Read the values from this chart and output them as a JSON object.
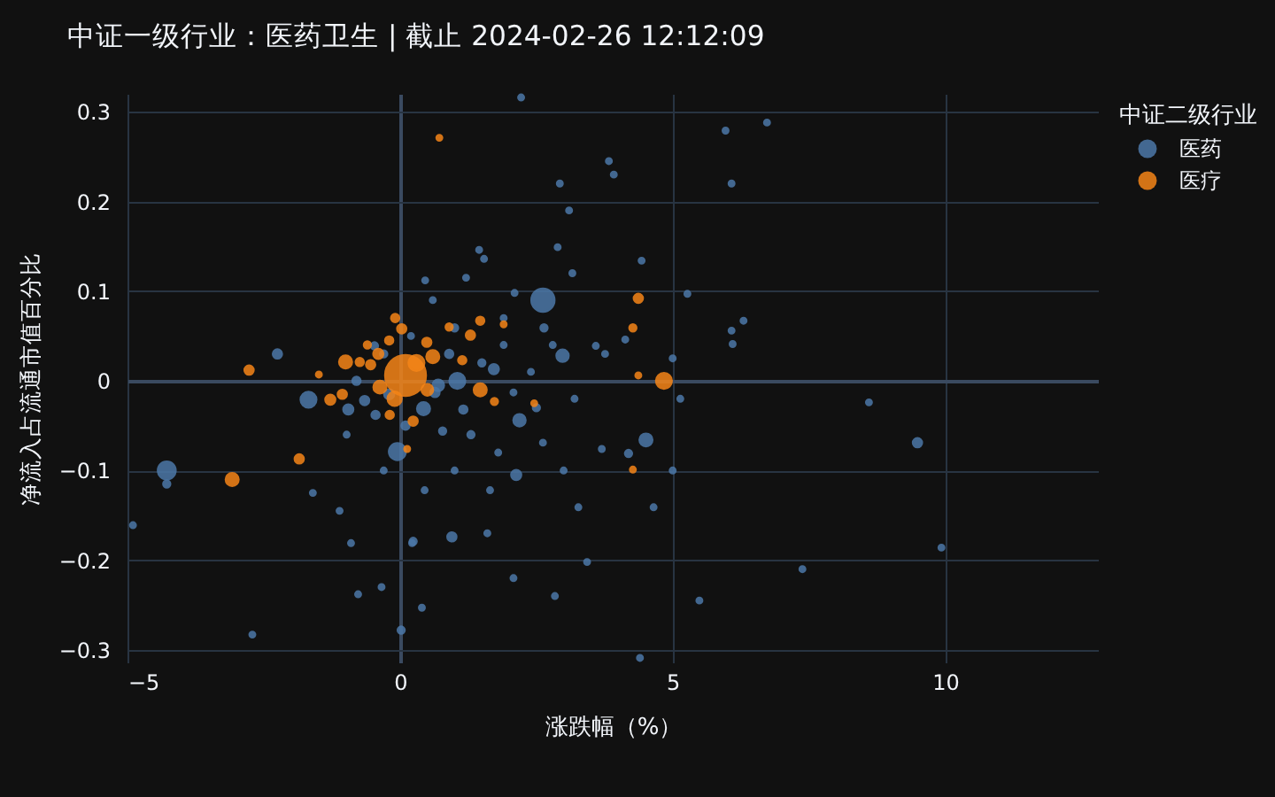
{
  "chart_data": {
    "type": "bubble",
    "title": "中证一级行业：医药卫生 | 截止 2024-02-26 12:12:09",
    "xlabel": "涨跌幅（%）",
    "ylabel": "净流入占流通市值百分比",
    "legend_title": "中证二级行业",
    "legend": "top right",
    "grid": true,
    "xlim": [
      -5,
      12.8
    ],
    "ylim": [
      -0.314,
      0.32
    ],
    "xticks": [
      -5,
      0,
      5,
      10
    ],
    "yticks": [
      -0.3,
      -0.2,
      -0.1,
      0,
      0.1,
      0.2,
      0.3
    ],
    "series": [
      {
        "name": "医药",
        "color": "#4c78a8",
        "x": [
          -4.28,
          -4.28,
          -2.25,
          -1.68,
          -0.05,
          -4.9,
          0.02,
          -0.34,
          -0.77,
          0.22,
          -1.6,
          -1.11,
          -0.9,
          -2.71,
          -0.47,
          -0.95,
          -0.98,
          2.62,
          2.98,
          2.64,
          1.05,
          0.43,
          2.13,
          2.19,
          1.72,
          0.95,
          0.24,
          1.0,
          2.1,
          1.45,
          1.54,
          2.93,
          3.83,
          3.92,
          3.16,
          2.89,
          0.46,
          1.21,
          2.22,
          0.64,
          -0.45,
          -0.65,
          0.78,
          1.16,
          2.08,
          0.45,
          1.65,
          2.08,
          2.84,
          0.4,
          3.43,
          3.27,
          3.7,
          3.59,
          4.13,
          2.62,
          4.51,
          9.49,
          8.6,
          5.97,
          6.73,
          6.08,
          5.27,
          6.08,
          6.1,
          6.3,
          5.0,
          5.14,
          5.0,
          4.65,
          7.38,
          5.49,
          9.93,
          4.43,
          4.4,
          4.19,
          3.76,
          -0.2,
          0.9,
          0.7,
          1.5,
          -0.3,
          1.9,
          0.2,
          1.3,
          1.8,
          2.5,
          0.1,
          -0.8,
          2.4,
          3.2,
          1.9,
          0.6,
          -0.3,
          1.0,
          3.0,
          2.8,
          1.6,
          3.1
        ],
        "values": [
          -0.1,
          -0.115,
          0.03,
          -0.021,
          -0.079,
          -0.161,
          -0.278,
          -0.23,
          -0.238,
          -0.181,
          -0.125,
          -0.145,
          -0.181,
          -0.283,
          0.039,
          -0.032,
          -0.06,
          0.09,
          0.028,
          0.059,
          0.0,
          -0.031,
          -0.105,
          -0.044,
          0.013,
          -0.174,
          -0.179,
          0.059,
          0.098,
          0.146,
          0.136,
          0.22,
          0.245,
          0.23,
          0.12,
          0.149,
          0.112,
          0.115,
          0.316,
          -0.013,
          -0.038,
          -0.022,
          -0.056,
          -0.032,
          -0.013,
          -0.122,
          -0.122,
          -0.22,
          -0.24,
          -0.253,
          -0.202,
          -0.141,
          -0.076,
          0.039,
          0.046,
          -0.069,
          -0.066,
          -0.069,
          -0.024,
          0.279,
          0.288,
          0.22,
          0.097,
          0.056,
          0.041,
          0.067,
          0.025,
          -0.02,
          -0.1,
          -0.141,
          -0.21,
          -0.245,
          -0.186,
          0.134,
          -0.309,
          -0.081,
          0.03,
          -0.015,
          0.03,
          -0.005,
          0.02,
          0.03,
          0.04,
          0.05,
          -0.06,
          -0.08,
          -0.03,
          -0.05,
          0.0,
          0.01,
          -0.02,
          0.07,
          0.09,
          -0.1,
          -0.1,
          -0.1,
          0.04,
          -0.17,
          0.19
        ],
        "sizes": [
          0.19,
          0.03,
          0.05,
          0.15,
          0.17,
          0.02,
          0.03,
          0.02,
          0.02,
          0.02,
          0.02,
          0.02,
          0.02,
          0.02,
          0.03,
          0.06,
          0.02,
          0.32,
          0.09,
          0.03,
          0.15,
          0.1,
          0.06,
          0.09,
          0.06,
          0.05,
          0.03,
          0.03,
          0.02,
          0.02,
          0.02,
          0.02,
          0.02,
          0.02,
          0.02,
          0.02,
          0.02,
          0.02,
          0.02,
          0.05,
          0.04,
          0.05,
          0.03,
          0.04,
          0.02,
          0.02,
          0.02,
          0.02,
          0.02,
          0.02,
          0.02,
          0.02,
          0.02,
          0.02,
          0.02,
          0.02,
          0.1,
          0.05,
          0.02,
          0.02,
          0.02,
          0.02,
          0.02,
          0.02,
          0.02,
          0.02,
          0.02,
          0.02,
          0.02,
          0.02,
          0.02,
          0.02,
          0.02,
          0.02,
          0.02,
          0.03,
          0.02,
          0.06,
          0.04,
          0.08,
          0.03,
          0.03,
          0.02,
          0.02,
          0.03,
          0.02,
          0.03,
          0.04,
          0.04,
          0.02,
          0.02,
          0.02,
          0.02,
          0.02,
          0.02,
          0.02,
          0.02,
          0.02,
          0.02
        ]
      },
      {
        "name": "医疗",
        "color": "#f58518",
        "x": [
          0.1,
          4.84,
          -3.08,
          -2.77,
          0.72,
          4.37,
          4.27,
          -1.85,
          -1.0,
          -0.09,
          0.03,
          -1.28,
          -1.06,
          -0.54,
          -0.37,
          0.49,
          0.6,
          1.29,
          1.47,
          1.14,
          1.47,
          0.24,
          -0.19,
          1.73,
          2.46,
          4.27,
          4.37,
          -1.49,
          -0.74,
          0.13,
          -0.4,
          0.3,
          -0.1,
          0.5,
          -0.6,
          1.9,
          0.9,
          -0.2
        ],
        "values": [
          0.006,
          0.0,
          -0.11,
          0.012,
          0.271,
          0.092,
          0.059,
          -0.087,
          0.021,
          0.07,
          0.058,
          -0.021,
          -0.015,
          0.018,
          -0.007,
          0.043,
          0.027,
          0.051,
          0.067,
          0.023,
          -0.01,
          -0.045,
          -0.038,
          -0.023,
          -0.025,
          -0.099,
          0.006,
          0.007,
          0.021,
          -0.076,
          0.03,
          0.02,
          -0.02,
          -0.01,
          0.04,
          0.063,
          0.06,
          0.045
        ],
        "sizes": [
          1,
          0.15,
          0.1,
          0.05,
          0.02,
          0.05,
          0.03,
          0.05,
          0.1,
          0.04,
          0.05,
          0.06,
          0.05,
          0.05,
          0.1,
          0.05,
          0.1,
          0.05,
          0.04,
          0.04,
          0.1,
          0.05,
          0.04,
          0.03,
          0.02,
          0.02,
          0.02,
          0.02,
          0.04,
          0.02,
          0.06,
          0.15,
          0.12,
          0.08,
          0.03,
          0.02,
          0.03,
          0.04
        ]
      }
    ]
  }
}
